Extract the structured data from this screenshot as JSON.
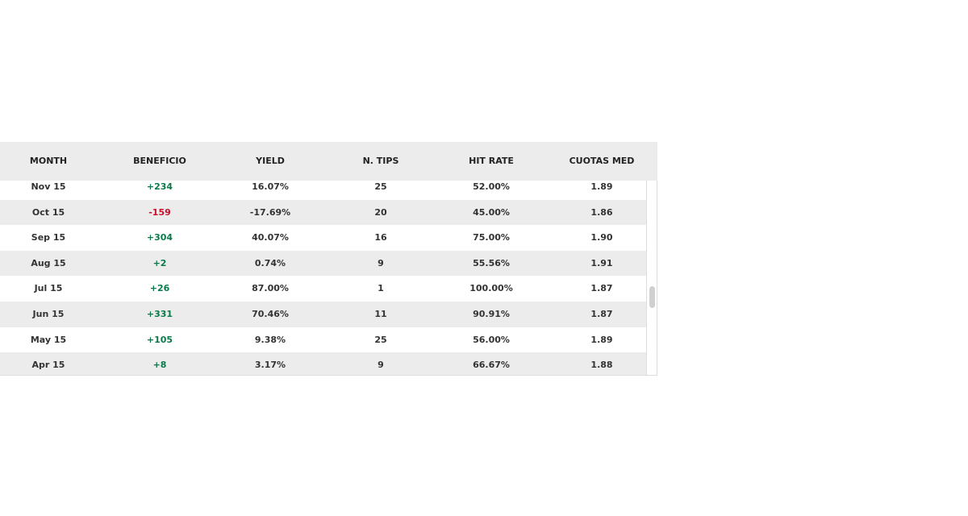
{
  "table": {
    "headers": [
      "MONTH",
      "BENEFICIO",
      "YIELD",
      "N. TIPS",
      "HIT RATE",
      "CUOTAS MED"
    ],
    "rows": [
      [
        "Nov 15",
        "+234",
        "16.07%",
        "25",
        "52.00%",
        "1.89"
      ],
      [
        "Oct 15",
        "-159",
        "-17.69%",
        "20",
        "45.00%",
        "1.86"
      ],
      [
        "Sep 15",
        "+304",
        "40.07%",
        "16",
        "75.00%",
        "1.90"
      ],
      [
        "Aug 15",
        "+2",
        "0.74%",
        "9",
        "55.56%",
        "1.91"
      ],
      [
        "Jul 15",
        "+26",
        "87.00%",
        "1",
        "100.00%",
        "1.87"
      ],
      [
        "Jun 15",
        "+331",
        "70.46%",
        "11",
        "90.91%",
        "1.87"
      ],
      [
        "May 15",
        "+105",
        "9.38%",
        "25",
        "56.00%",
        "1.89"
      ],
      [
        "Apr 15",
        "+8",
        "3.17%",
        "9",
        "66.67%",
        "1.88"
      ]
    ]
  }
}
